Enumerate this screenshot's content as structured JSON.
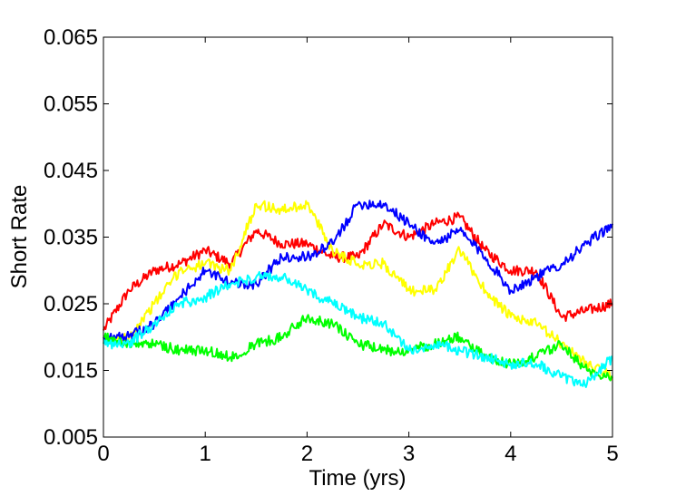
{
  "chart_data": {
    "type": "line",
    "title": "",
    "xlabel": "Time (yrs)",
    "ylabel": "Short Rate",
    "xlim": [
      0,
      5
    ],
    "ylim": [
      0.005,
      0.065
    ],
    "xticks": [
      0,
      1,
      2,
      3,
      4,
      5
    ],
    "xtick_labels": [
      "0",
      "1",
      "2",
      "3",
      "4",
      "5"
    ],
    "yticks": [
      0.005,
      0.015,
      0.025,
      0.035,
      0.045,
      0.055,
      0.065
    ],
    "ytick_labels": [
      "0.005",
      "0.015",
      "0.025",
      "0.035",
      "0.045",
      "0.055",
      "0.065"
    ],
    "grid": false,
    "legend": null,
    "x": [
      0,
      0.25,
      0.5,
      0.75,
      1.0,
      1.25,
      1.5,
      1.75,
      2.0,
      2.25,
      2.5,
      2.75,
      3.0,
      3.25,
      3.5,
      3.75,
      4.0,
      4.25,
      4.5,
      4.75,
      5.0
    ],
    "series": [
      {
        "color": "#ff0000",
        "values": [
          0.021,
          0.027,
          0.03,
          0.031,
          0.033,
          0.031,
          0.036,
          0.034,
          0.034,
          0.032,
          0.032,
          0.037,
          0.035,
          0.037,
          0.038,
          0.033,
          0.03,
          0.03,
          0.023,
          0.024,
          0.025
        ]
      },
      {
        "color": "#ffff00",
        "values": [
          0.019,
          0.02,
          0.025,
          0.03,
          0.031,
          0.03,
          0.04,
          0.039,
          0.04,
          0.033,
          0.031,
          0.031,
          0.027,
          0.027,
          0.033,
          0.027,
          0.023,
          0.022,
          0.019,
          0.016,
          0.014
        ]
      },
      {
        "color": "#0000ff",
        "values": [
          0.02,
          0.02,
          0.022,
          0.026,
          0.03,
          0.028,
          0.028,
          0.032,
          0.032,
          0.034,
          0.04,
          0.04,
          0.037,
          0.034,
          0.036,
          0.032,
          0.027,
          0.029,
          0.031,
          0.034,
          0.037
        ]
      },
      {
        "color": "#00ff00",
        "values": [
          0.02,
          0.019,
          0.019,
          0.018,
          0.018,
          0.017,
          0.019,
          0.02,
          0.023,
          0.022,
          0.019,
          0.018,
          0.018,
          0.019,
          0.02,
          0.017,
          0.016,
          0.017,
          0.019,
          0.015,
          0.014
        ]
      },
      {
        "color": "#00ffff",
        "values": [
          0.019,
          0.019,
          0.022,
          0.025,
          0.026,
          0.028,
          0.029,
          0.029,
          0.027,
          0.025,
          0.023,
          0.022,
          0.018,
          0.019,
          0.018,
          0.017,
          0.016,
          0.016,
          0.014,
          0.013,
          0.017
        ]
      }
    ]
  }
}
